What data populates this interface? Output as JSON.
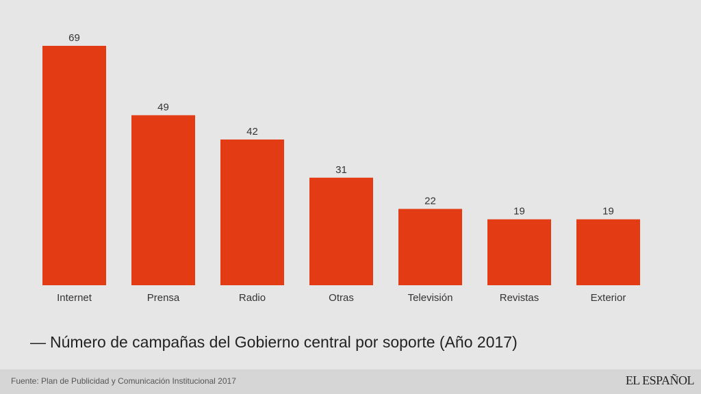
{
  "chart_data": {
    "type": "bar",
    "categories": [
      "Internet",
      "Prensa",
      "Radio",
      "Otras",
      "Televisión",
      "Revistas",
      "Exterior"
    ],
    "values": [
      69,
      49,
      42,
      31,
      22,
      19,
      19
    ],
    "title": "Número de campañas del Gobierno central por soporte (Año 2017)",
    "xlabel": "",
    "ylabel": "",
    "ylim": [
      0,
      69
    ],
    "grid": false,
    "legend": "none",
    "bar_color": "#e33b14"
  },
  "caption": {
    "dash": "—",
    "text": "Número de campañas del Gobierno central por soporte (Año 2017)"
  },
  "footer": {
    "source": "Fuente: Plan de Publicidad y Comunicación Institucional 2017",
    "logo": "EL ESPAÑOL"
  },
  "colors": {
    "background": "#e6e6e6",
    "bar": "#e33b14",
    "footer_bg": "#d6d6d6"
  }
}
